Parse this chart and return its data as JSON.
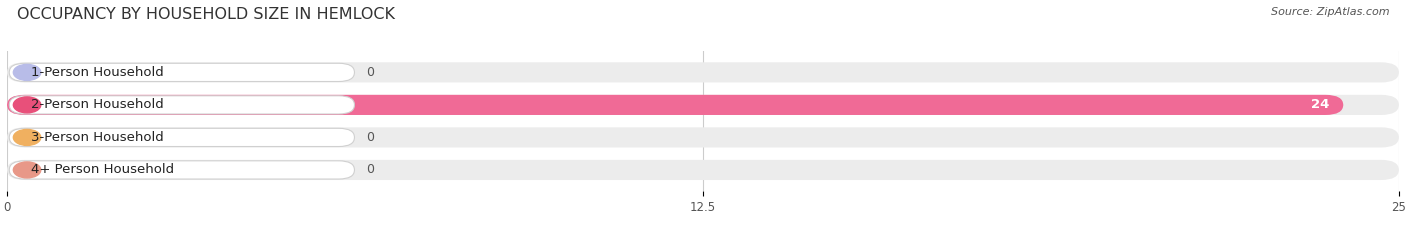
{
  "title": "OCCUPANCY BY HOUSEHOLD SIZE IN HEMLOCK",
  "source": "Source: ZipAtlas.com",
  "categories": [
    "1-Person Household",
    "2-Person Household",
    "3-Person Household",
    "4+ Person Household"
  ],
  "values": [
    0,
    24,
    0,
    0
  ],
  "bar_colors": [
    "#a8aedd",
    "#f06a96",
    "#f5c07a",
    "#f0a898"
  ],
  "label_colors": [
    "#b8bce8",
    "#e8507a",
    "#f0b060",
    "#e89888"
  ],
  "xlim": [
    0,
    25
  ],
  "xticks": [
    0,
    12.5,
    25
  ],
  "xtick_labels": [
    "0",
    "12.5",
    "25"
  ],
  "bar_height": 0.62,
  "background_color": "#ffffff",
  "bar_bg_color": "#ececec",
  "title_fontsize": 11.5,
  "label_fontsize": 9.5,
  "value_fontsize": 9
}
